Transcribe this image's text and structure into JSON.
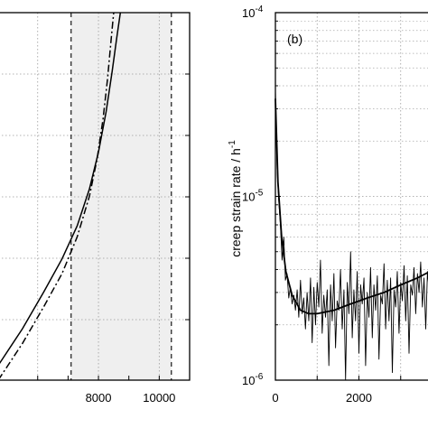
{
  "chart_data": [
    {
      "type": "line",
      "panel": "a",
      "panel_label": "",
      "title": "",
      "xlabel": "",
      "ylabel": "",
      "xlim": [
        4700,
        11000
      ],
      "ylim": [
        0,
        1
      ],
      "xticks": [
        8000,
        10000
      ],
      "xtick_labels": [
        "8000",
        "10000"
      ],
      "grid": true,
      "shaded_region": [
        7100,
        10400
      ],
      "vertical_lines": [
        7100,
        10400
      ],
      "series": [
        {
          "style": "solid",
          "x": [
            4700,
            5500,
            6200,
            6800,
            7300,
            7700,
            8000,
            8250,
            8450,
            8600,
            8720
          ],
          "y": [
            0.04,
            0.14,
            0.24,
            0.33,
            0.42,
            0.52,
            0.62,
            0.73,
            0.84,
            0.93,
            1.0
          ]
        },
        {
          "style": "dash-dot",
          "x": [
            4700,
            5500,
            6200,
            6800,
            7300,
            7700,
            7950,
            8150,
            8300,
            8420,
            8500
          ],
          "y": [
            0.0,
            0.1,
            0.2,
            0.29,
            0.39,
            0.5,
            0.6,
            0.71,
            0.82,
            0.93,
            1.0
          ]
        }
      ]
    },
    {
      "type": "line",
      "panel": "b",
      "panel_label": "(b)",
      "title": "",
      "xlabel": "",
      "ylabel": "creep strain rate / h",
      "ylabel_superscript": "-1",
      "xlim": [
        0,
        4000
      ],
      "ylim": [
        1e-06,
        0.0001
      ],
      "yscale": "log",
      "xticks": [
        0,
        2000
      ],
      "xtick_labels": [
        "0",
        "2000"
      ],
      "ytick_labels": [
        {
          "base": "10",
          "exp": "-4"
        },
        {
          "base": "10",
          "exp": "-5"
        },
        {
          "base": "10",
          "exp": "-6"
        }
      ],
      "grid": true,
      "series": [
        {
          "style": "solid",
          "x": [
            0,
            60,
            150,
            250,
            400,
            600,
            800,
            1000,
            1400,
            1800,
            2200,
            2600,
            3000,
            3400,
            3700
          ],
          "y": [
            3.4e-05,
            1.2e-05,
            6e-06,
            3.9e-06,
            2.9e-06,
            2.4e-06,
            2.3e-06,
            2.3e-06,
            2.4e-06,
            2.6e-06,
            2.8e-06,
            3e-06,
            3.3e-06,
            3.6e-06,
            3.9e-06
          ]
        },
        {
          "style": "noisy",
          "x": [
            0,
            40,
            80,
            120,
            160,
            200,
            240,
            280,
            320,
            360,
            400,
            440,
            480,
            520,
            560,
            600,
            640,
            680,
            720,
            760,
            800,
            840,
            880,
            920,
            960,
            1000,
            1040,
            1080,
            1120,
            1160,
            1200,
            1240,
            1280,
            1320,
            1360,
            1400,
            1440,
            1480,
            1520,
            1560,
            1600,
            1640,
            1680,
            1720,
            1760,
            1800,
            1840,
            1880,
            1920,
            1960,
            2000,
            2040,
            2080,
            2120,
            2160,
            2200,
            2240,
            2280,
            2320,
            2360,
            2400,
            2440,
            2480,
            2520,
            2560,
            2600,
            2640,
            2680,
            2720,
            2760,
            2800,
            2840,
            2880,
            2920,
            2960,
            3000,
            3040,
            3080,
            3120,
            3160,
            3200,
            3240,
            3280,
            3320,
            3360,
            3400,
            3440,
            3480,
            3520,
            3560,
            3600,
            3640,
            3680,
            3720
          ],
          "y": [
            3.8e-05,
            1.4e-05,
            9.5e-06,
            7e-06,
            4.5e-06,
            6e-06,
            3.5e-06,
            3.8e-06,
            2.8e-06,
            3.2e-06,
            2.6e-06,
            2.9e-06,
            2.4e-06,
            3.1e-06,
            2.2e-06,
            3.5e-06,
            2.3e-06,
            2.8e-06,
            1.9e-06,
            3e-06,
            2.1e-06,
            3.6e-06,
            1.6e-06,
            3.2e-06,
            2e-06,
            3.4e-06,
            2.5e-06,
            4.5e-06,
            1.8e-06,
            2.9e-06,
            2.2e-06,
            3.1e-06,
            1.2e-06,
            3.3e-06,
            2.1e-06,
            3.8e-06,
            1.5e-06,
            2.7e-06,
            2.4e-06,
            4e-06,
            1.9e-06,
            3.1e-06,
            1e-06,
            3.4e-06,
            2.3e-06,
            5e-06,
            1.7e-06,
            3.1e-06,
            2.1e-06,
            3.9e-06,
            1.4e-06,
            3.3e-06,
            2.6e-06,
            3.6e-06,
            1.2e-06,
            3e-06,
            2.2e-06,
            4.1e-06,
            1.7e-06,
            3.3e-06,
            2.4e-06,
            3.7e-06,
            1.3e-06,
            2.9e-06,
            2.6e-06,
            4.3e-06,
            1.9e-06,
            3.5e-06,
            2.1e-06,
            3.6e-06,
            1.1e-06,
            3.1e-06,
            2.5e-06,
            3.9e-06,
            1.8e-06,
            3.4e-06,
            2.7e-06,
            4.2e-06,
            2.1e-06,
            3.7e-06,
            1.4e-06,
            3.3e-06,
            2.9e-06,
            4.1e-06,
            2.3e-06,
            3.8e-06,
            3e-06,
            4.4e-06,
            2.5e-06,
            3.6e-06,
            1.9e-06,
            3.9e-06,
            3.1e-06,
            4.2e-06
          ]
        }
      ]
    }
  ]
}
